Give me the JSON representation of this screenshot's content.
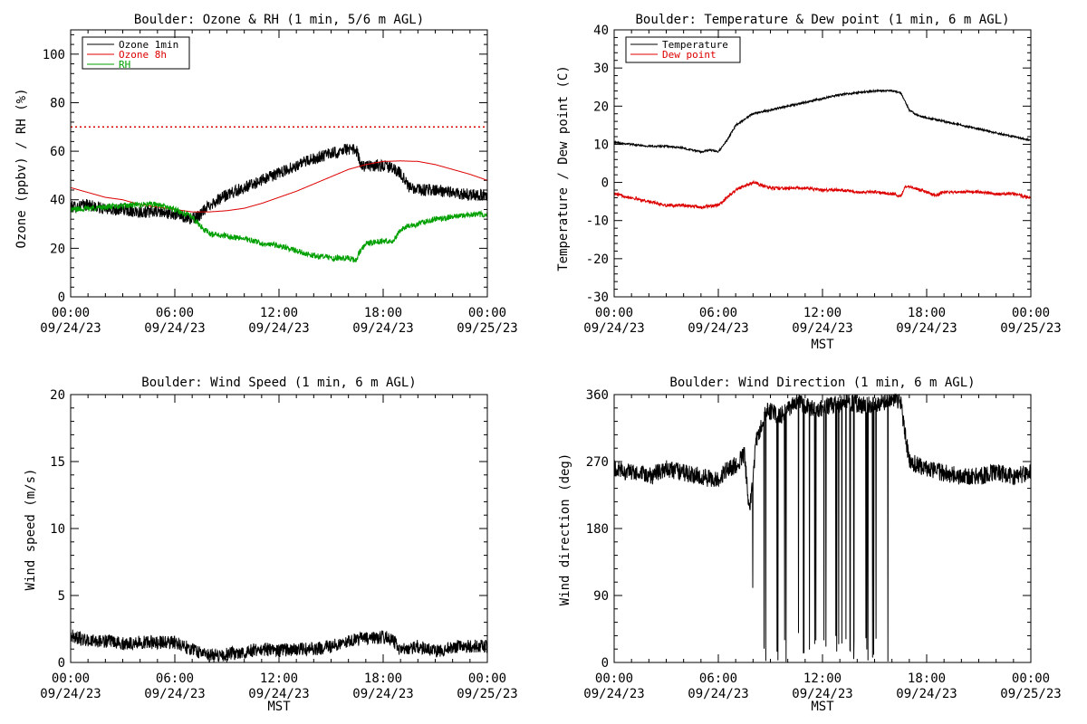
{
  "chart_data": [
    {
      "type": "line",
      "title": "Boulder: Ozone & RH (1 min, 5/6 m AGL)",
      "ylabel": "Ozone (ppbv) / RH (%)",
      "xlabel": "",
      "xlim": [
        0,
        24
      ],
      "ylim": [
        0,
        110
      ],
      "yticks": [
        0,
        20,
        40,
        60,
        80,
        100
      ],
      "xticks": [
        0,
        6,
        12,
        18,
        24
      ],
      "xtick_labels": [
        [
          "00:00",
          "09/24/23"
        ],
        [
          "06:00",
          "09/24/23"
        ],
        [
          "12:00",
          "09/24/23"
        ],
        [
          "18:00",
          "09/24/23"
        ],
        [
          "00:00",
          "09/25/23"
        ]
      ],
      "legend_position": "top-left",
      "reference_lines": [
        {
          "y": 70,
          "color": "#dd0000",
          "style": "dotted"
        }
      ],
      "series": [
        {
          "name": "Ozone 1min",
          "color": "#000000",
          "noise": 2.5,
          "x": [
            0,
            1,
            2,
            3,
            4,
            5,
            6,
            7,
            7.5,
            8,
            9,
            10,
            11,
            12,
            13,
            14,
            15,
            16,
            16.5,
            16.7,
            17,
            18,
            18.5,
            19,
            19.5,
            20,
            21,
            22,
            23,
            24
          ],
          "y": [
            37,
            38,
            36,
            36,
            35,
            35,
            34,
            32,
            34,
            38,
            42,
            45,
            48,
            51,
            54,
            57,
            59,
            61,
            60,
            54,
            54,
            54,
            53,
            51,
            45,
            44,
            44,
            43,
            42,
            42
          ]
        },
        {
          "name": "Ozone 8h",
          "color": "#dd0000",
          "noise": 0,
          "x": [
            0,
            1,
            2,
            3,
            4,
            5,
            6,
            7,
            8,
            9,
            10,
            11,
            12,
            13,
            14,
            15,
            16,
            17,
            18,
            19,
            20,
            21,
            22,
            23,
            24
          ],
          "y": [
            45,
            43,
            41,
            40,
            38,
            37,
            36,
            35,
            35,
            35.5,
            36.5,
            38.5,
            41,
            43.5,
            46.5,
            49.5,
            52.5,
            54.5,
            55.8,
            56,
            55.8,
            54.5,
            52.5,
            50.5,
            48
          ]
        },
        {
          "name": "RH",
          "color": "#00a000",
          "noise": 1.2,
          "x": [
            0,
            2,
            4,
            5,
            6,
            7,
            7.5,
            8,
            9,
            10,
            11,
            12,
            13,
            14,
            15,
            16,
            16.5,
            16.6,
            17,
            18,
            18.6,
            19,
            20,
            21,
            22,
            23,
            24
          ],
          "y": [
            36,
            37,
            38,
            38,
            36,
            33,
            29,
            26,
            25,
            24,
            22,
            21,
            19,
            17,
            16,
            16,
            15,
            18,
            22,
            23,
            23,
            28,
            30,
            32,
            33,
            34,
            34
          ]
        }
      ]
    },
    {
      "type": "line",
      "title": "Boulder: Temperature & Dew point (1 min, 6 m AGL)",
      "ylabel": "Temperature / Dew point (C)",
      "xlabel": "MST",
      "xlim": [
        0,
        24
      ],
      "ylim": [
        -30,
        40
      ],
      "yticks": [
        -30,
        -20,
        -10,
        0,
        10,
        20,
        30,
        40
      ],
      "xticks": [
        0,
        6,
        12,
        18,
        24
      ],
      "xtick_labels": [
        [
          "00:00",
          "09/24/23"
        ],
        [
          "06:00",
          "09/24/23"
        ],
        [
          "12:00",
          "09/24/23"
        ],
        [
          "18:00",
          "09/24/23"
        ],
        [
          "00:00",
          "09/25/23"
        ]
      ],
      "legend_position": "top-left",
      "reference_lines": [],
      "series": [
        {
          "name": "Temperature",
          "color": "#000000",
          "noise": 0.25,
          "x": [
            0,
            1,
            2,
            3,
            4,
            5,
            5.5,
            6,
            6.5,
            7,
            8,
            9,
            10,
            11,
            12,
            13,
            14,
            15,
            16,
            16.5,
            17,
            17.5,
            18,
            19,
            20,
            21,
            22,
            23,
            24
          ],
          "y": [
            10.5,
            10,
            9.5,
            9.5,
            9,
            8,
            8.5,
            8,
            11,
            15,
            18,
            19,
            20,
            21,
            22,
            23,
            23.5,
            24,
            24,
            23.5,
            19,
            17.5,
            17,
            16,
            15,
            14,
            13,
            12,
            11
          ]
        },
        {
          "name": "Dew point",
          "color": "#dd0000",
          "noise": 0.4,
          "x": [
            0,
            1,
            2,
            3,
            4,
            5,
            6,
            6.5,
            7,
            7.5,
            8,
            9,
            10,
            11,
            12,
            13,
            14,
            15,
            16,
            16.5,
            16.8,
            17,
            18,
            18.5,
            19,
            20,
            21,
            22,
            23,
            24
          ],
          "y": [
            -3,
            -4,
            -5,
            -6,
            -6,
            -6.5,
            -6,
            -4,
            -2,
            -1,
            0,
            -1.5,
            -1.5,
            -1.5,
            -2,
            -2,
            -2.5,
            -2.5,
            -3,
            -3.5,
            -1,
            -1,
            -2.5,
            -3.5,
            -2.5,
            -2.5,
            -2.5,
            -3,
            -3,
            -4
          ]
        }
      ]
    },
    {
      "type": "line",
      "title": "Boulder: Wind Speed (1 min, 6 m AGL)",
      "ylabel": "Wind speed (m/s)",
      "xlabel": "MST",
      "xlim": [
        0,
        24
      ],
      "ylim": [
        0,
        20
      ],
      "yticks": [
        0,
        5,
        10,
        15,
        20
      ],
      "xticks": [
        0,
        6,
        12,
        18,
        24
      ],
      "xtick_labels": [
        [
          "00:00",
          "09/24/23"
        ],
        [
          "06:00",
          "09/24/23"
        ],
        [
          "12:00",
          "09/24/23"
        ],
        [
          "18:00",
          "09/24/23"
        ],
        [
          "00:00",
          "09/25/23"
        ]
      ],
      "legend_position": "none",
      "reference_lines": [],
      "series": [
        {
          "name": "",
          "color": "#000000",
          "noise": 0.5,
          "x": [
            0,
            1,
            2,
            3,
            4,
            5,
            6,
            7,
            8,
            9,
            10,
            11,
            12,
            13,
            14,
            15,
            16,
            17,
            18,
            18.5,
            19,
            20,
            21,
            22,
            23,
            24
          ],
          "y": [
            2,
            1.6,
            1.6,
            1.4,
            1.5,
            1.5,
            1.5,
            1,
            0.5,
            0.6,
            0.8,
            1,
            0.9,
            1,
            1,
            1.2,
            1.6,
            1.8,
            1.9,
            1.8,
            0.9,
            1.2,
            0.8,
            1.2,
            1.2,
            1.2
          ]
        }
      ]
    },
    {
      "type": "line",
      "title": "Boulder: Wind Direction (1 min, 6 m AGL)",
      "ylabel": "Wind direction (deg)",
      "xlabel": "MST",
      "xlim": [
        0,
        24
      ],
      "ylim": [
        0,
        360
      ],
      "yticks": [
        0,
        90,
        180,
        270,
        360
      ],
      "xticks": [
        0,
        6,
        12,
        18,
        24
      ],
      "xtick_labels": [
        [
          "00:00",
          "09/24/23"
        ],
        [
          "06:00",
          "09/24/23"
        ],
        [
          "12:00",
          "09/24/23"
        ],
        [
          "18:00",
          "09/24/23"
        ],
        [
          "00:00",
          "09/25/23"
        ]
      ],
      "legend_position": "none",
      "reference_lines": [],
      "series": [
        {
          "name": "",
          "color": "#000000",
          "noise": 12,
          "x": [
            0,
            1,
            2,
            3,
            4,
            5,
            6,
            6.5,
            7,
            7.5,
            7.8,
            8.2,
            8.8,
            9.5,
            10.5,
            11.5,
            12.5,
            13.5,
            14.5,
            15.5,
            16,
            16.5,
            17,
            18,
            19,
            20,
            21,
            22,
            23,
            24
          ],
          "y": [
            260,
            255,
            250,
            260,
            255,
            250,
            245,
            260,
            265,
            280,
            200,
            300,
            340,
            330,
            350,
            340,
            345,
            350,
            345,
            350,
            355,
            350,
            270,
            260,
            255,
            250,
            250,
            255,
            250,
            255
          ]
        }
      ]
    }
  ]
}
